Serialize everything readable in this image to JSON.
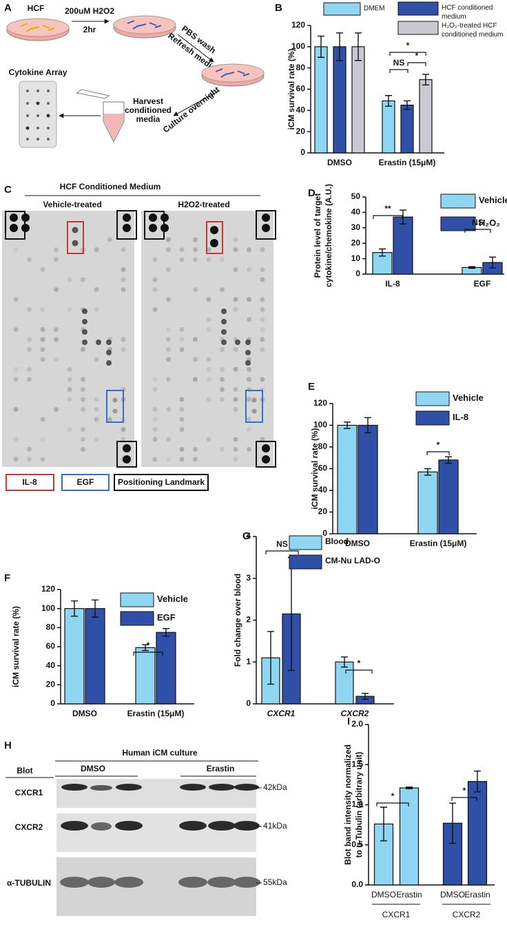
{
  "figure": {
    "panel_labels": [
      "A",
      "B",
      "C",
      "D",
      "E",
      "F",
      "G",
      "H",
      "I"
    ],
    "schematic": {
      "cell": "HCF",
      "treatment": "200uM H2O2",
      "duration": "2hr",
      "wash": "PBS wash",
      "refresh": "Refresh media",
      "culture": "Culture overnight",
      "harvest": [
        "Harvest",
        "conditioned",
        "media"
      ],
      "array": "Cytokine Array"
    },
    "cytokine_array": {
      "title": "HCF Conditioned Medium",
      "conditions": [
        "Vehicle-treated",
        "H2O2-treated"
      ],
      "legend": [
        "IL-8",
        "EGF",
        "Positioning Landmark"
      ]
    },
    "western_blot": {
      "title": "Human iCM culture",
      "blot": "Blot",
      "conditions": [
        "DMSO",
        "Erastin"
      ],
      "targets": [
        "CXCR1",
        "CXCR2",
        "α-TUBULIN"
      ],
      "sizes": [
        "42kDa",
        "41kDa",
        "55kDa"
      ]
    }
  },
  "chart_data": [
    {
      "type": "bar",
      "ylabel": "iCM survival rate (%)",
      "categories": [
        "DMSO",
        "Erastin (15μM)"
      ],
      "series": [
        {
          "name": "DMEM",
          "color": "#8fd6f2",
          "values": [
            100,
            49
          ],
          "errors": [
            10,
            5
          ]
        },
        {
          "name": "HCF conditioned medium",
          "color": "#3050a8",
          "values": [
            100,
            45
          ],
          "errors": [
            13,
            4
          ]
        },
        {
          "name": "H₂O₂-treated HCF conditioned medium",
          "color": "#c9c9d2",
          "values": [
            100,
            69
          ],
          "errors": [
            13,
            5
          ]
        }
      ],
      "ylim": [
        0,
        120
      ],
      "yticks": [
        0,
        20,
        40,
        60,
        80,
        100,
        120
      ],
      "annotations": [
        "*",
        "NS",
        "*"
      ]
    },
    {
      "type": "bar",
      "ylabel": [
        "Protein level of target",
        "cytokine/chemokine (A.U.)"
      ],
      "categories": [
        "IL-8",
        "EGF"
      ],
      "series": [
        {
          "name": "Vehicle",
          "color": "#8fd6f2",
          "values": [
            14,
            4.3
          ],
          "errors": [
            2.3,
            0.5
          ]
        },
        {
          "name": "H₂O₂",
          "color": "#3050a8",
          "values": [
            37,
            7.5
          ],
          "errors": [
            4.5,
            3.5
          ]
        }
      ],
      "ylim": [
        0,
        50
      ],
      "yticks": [
        0,
        10,
        20,
        30,
        40,
        50
      ],
      "annotations": [
        "**",
        "NS"
      ]
    },
    {
      "type": "bar",
      "ylabel": "iCM survival rate (%)",
      "categories": [
        "DMSO",
        "Erastin (15μM)"
      ],
      "series": [
        {
          "name": "Vehicle",
          "color": "#8fd6f2",
          "values": [
            100,
            57
          ],
          "errors": [
            3,
            3
          ]
        },
        {
          "name": "IL-8",
          "color": "#3050a8",
          "values": [
            100,
            68
          ],
          "errors": [
            7,
            3
          ]
        }
      ],
      "ylim": [
        0,
        120
      ],
      "yticks": [
        0,
        20,
        40,
        60,
        80,
        100,
        120
      ],
      "annotations": [
        "*"
      ]
    },
    {
      "type": "bar",
      "ylabel": "iCM survival rate (%)",
      "categories": [
        "DMSO",
        "Erastin (15μM)"
      ],
      "series": [
        {
          "name": "Vehicle",
          "color": "#8fd6f2",
          "values": [
            100,
            59
          ],
          "errors": [
            8,
            3
          ]
        },
        {
          "name": "EGF",
          "color": "#3050a8",
          "values": [
            100,
            75
          ],
          "errors": [
            9,
            4
          ]
        }
      ],
      "ylim": [
        0,
        120
      ],
      "yticks": [
        0,
        20,
        40,
        60,
        80,
        100,
        120
      ],
      "annotations": [
        "*"
      ]
    },
    {
      "type": "bar",
      "ylabel": "Fold change over blood",
      "categories": [
        "CXCR1",
        "CXCR2"
      ],
      "category_style": "italic",
      "series": [
        {
          "name": "Blood",
          "color": "#8fd6f2",
          "values": [
            1.1,
            1.0
          ],
          "errors": [
            0.63,
            0.12
          ]
        },
        {
          "name": "CM-Nu LAD-O",
          "color": "#3050a8",
          "values": [
            2.15,
            0.18
          ],
          "errors": [
            1.35,
            0.07
          ]
        }
      ],
      "ylim": [
        0,
        4
      ],
      "yticks": [
        0,
        1,
        2,
        3,
        4
      ],
      "annotations": [
        "NS",
        "*"
      ]
    },
    {
      "type": "bar",
      "ylabel": [
        "Blot band intensity normalized",
        "to α-Tubulin (arbitrary unit)"
      ],
      "categories": [
        "DMSO",
        "Erastin",
        "DMSO",
        "Erastin"
      ],
      "groups": [
        "CXCR1",
        "CXCR2"
      ],
      "colors": [
        "#8fd6f2",
        "#8fd6f2",
        "#3050a8",
        "#3050a8"
      ],
      "values": [
        0.76,
        1.21,
        0.77,
        1.29
      ],
      "errors": [
        0.21,
        0.01,
        0.25,
        0.13
      ],
      "ylim": [
        0,
        2
      ],
      "yticks": [
        {
          "value": 0,
          "label": "0.0"
        },
        {
          "value": 0.5,
          "label": "0.5"
        },
        {
          "value": 1,
          "label": "1.0"
        },
        {
          "value": 1.5,
          "label": "1.5"
        },
        {
          "value": 2,
          "label": "2.0"
        }
      ],
      "annotations": [
        "*",
        "*"
      ]
    }
  ]
}
